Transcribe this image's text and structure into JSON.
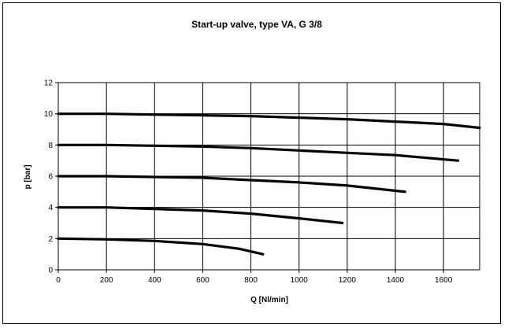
{
  "chart_data": {
    "type": "line",
    "title": "Start-up valve, type VA, G 3/8",
    "xlabel": "Q [Nl/min]",
    "ylabel": "p [bar]",
    "xlim": [
      0,
      1750
    ],
    "ylim": [
      0,
      12
    ],
    "x_ticks": [
      "0",
      "200",
      "400",
      "600",
      "800",
      "1000",
      "1200",
      "1400",
      "1600"
    ],
    "y_ticks": [
      "0",
      "2",
      "4",
      "6",
      "8",
      "10",
      "12"
    ],
    "grid": true,
    "legend": "none",
    "series_color": "#000000",
    "series": [
      {
        "x": [
          0,
          200,
          400,
          600,
          800,
          1000,
          1200,
          1400,
          1600,
          1750
        ],
        "y": [
          10.0,
          10.0,
          9.95,
          9.9,
          9.85,
          9.75,
          9.65,
          9.5,
          9.35,
          9.1
        ]
      },
      {
        "x": [
          0,
          200,
          400,
          600,
          800,
          1000,
          1200,
          1400,
          1660
        ],
        "y": [
          8.0,
          8.0,
          7.95,
          7.9,
          7.8,
          7.65,
          7.5,
          7.35,
          7.0
        ]
      },
      {
        "x": [
          0,
          200,
          400,
          600,
          800,
          1000,
          1200,
          1440
        ],
        "y": [
          6.0,
          6.0,
          5.95,
          5.9,
          5.75,
          5.6,
          5.4,
          5.0
        ]
      },
      {
        "x": [
          0,
          200,
          400,
          600,
          800,
          1000,
          1180
        ],
        "y": [
          4.0,
          4.0,
          3.9,
          3.8,
          3.6,
          3.3,
          3.0
        ]
      },
      {
        "x": [
          0,
          200,
          400,
          600,
          750,
          850
        ],
        "y": [
          2.0,
          1.95,
          1.85,
          1.65,
          1.35,
          1.0
        ]
      }
    ]
  }
}
